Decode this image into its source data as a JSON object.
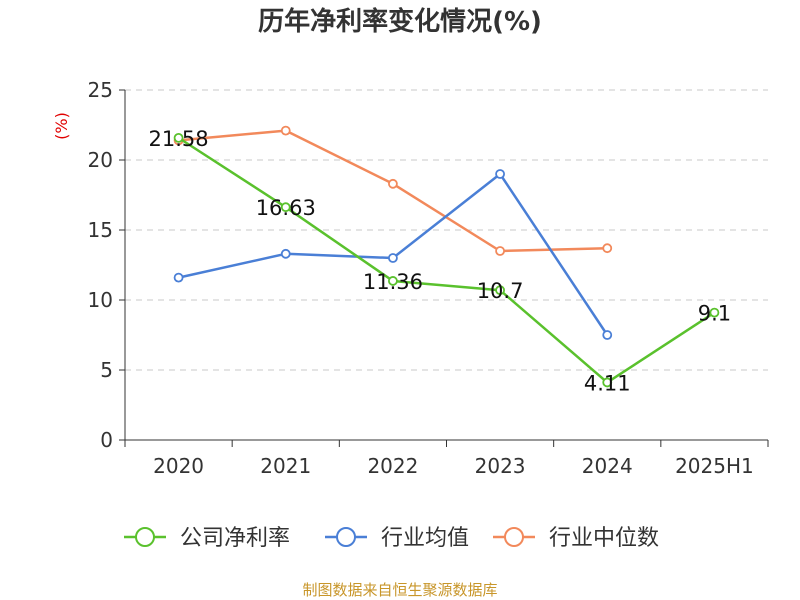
{
  "chart_data": {
    "type": "line",
    "title": "历年净利率变化情况(%)",
    "ylabel": "(%)",
    "categories": [
      "2020",
      "2021",
      "2022",
      "2023",
      "2024",
      "2025H1"
    ],
    "ylim": [
      0,
      25
    ],
    "yticks": [
      0,
      5,
      10,
      15,
      20,
      25
    ],
    "grid": true,
    "legend_position": "bottom",
    "series": [
      {
        "name": "公司净利率",
        "color": "#5ac12d",
        "values": [
          21.58,
          16.63,
          11.36,
          10.7,
          4.11,
          9.1
        ],
        "labels": [
          "21.58",
          "16.63",
          "11.36",
          "10.7",
          "4.11",
          "9.1"
        ]
      },
      {
        "name": "行业均值",
        "color": "#4a7fd6",
        "values": [
          11.6,
          13.3,
          13.0,
          19.0,
          7.5,
          null
        ]
      },
      {
        "name": "行业中位数",
        "color": "#f2895b",
        "values": [
          21.4,
          22.1,
          18.3,
          13.5,
          13.7,
          null
        ]
      }
    ],
    "source": "制图数据来自恒生聚源数据库"
  }
}
